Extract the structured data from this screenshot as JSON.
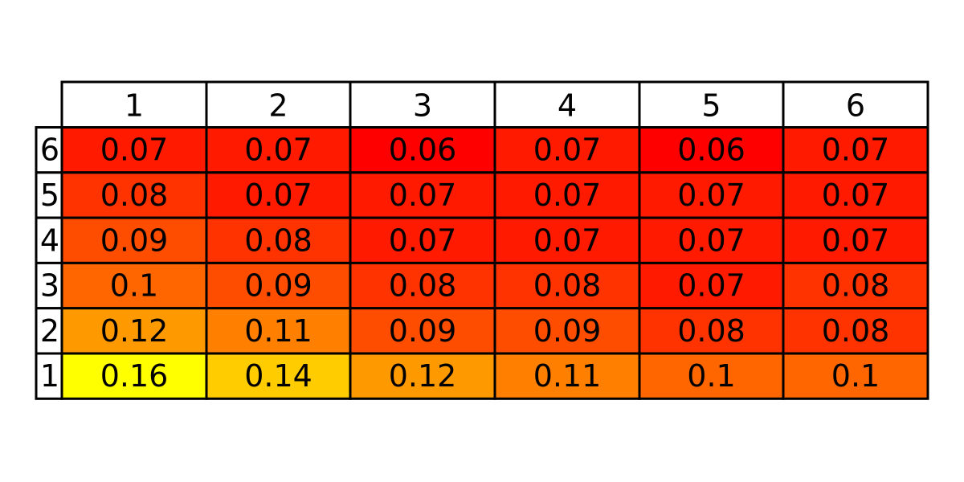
{
  "chart_data": {
    "type": "table",
    "col_labels": [
      "1",
      "2",
      "3",
      "4",
      "5",
      "6"
    ],
    "row_labels": [
      "6",
      "5",
      "4",
      "3",
      "2",
      "1"
    ],
    "rows": [
      [
        "0.07",
        "0.07",
        "0.06",
        "0.07",
        "0.06",
        "0.07"
      ],
      [
        "0.08",
        "0.07",
        "0.07",
        "0.07",
        "0.07",
        "0.07"
      ],
      [
        "0.09",
        "0.08",
        "0.07",
        "0.07",
        "0.07",
        "0.07"
      ],
      [
        "0.1",
        "0.09",
        "0.08",
        "0.08",
        "0.07",
        "0.08"
      ],
      [
        "0.12",
        "0.11",
        "0.09",
        "0.09",
        "0.08",
        "0.08"
      ],
      [
        "0.16",
        "0.14",
        "0.12",
        "0.11",
        "0.1",
        "0.1"
      ]
    ],
    "colormap": "autumn",
    "value_range": [
      0.06,
      0.16
    ],
    "colors": {
      "low": "#ff0000",
      "high": "#ffff00",
      "header_bg": "#ffffff",
      "border": "#000000"
    }
  }
}
